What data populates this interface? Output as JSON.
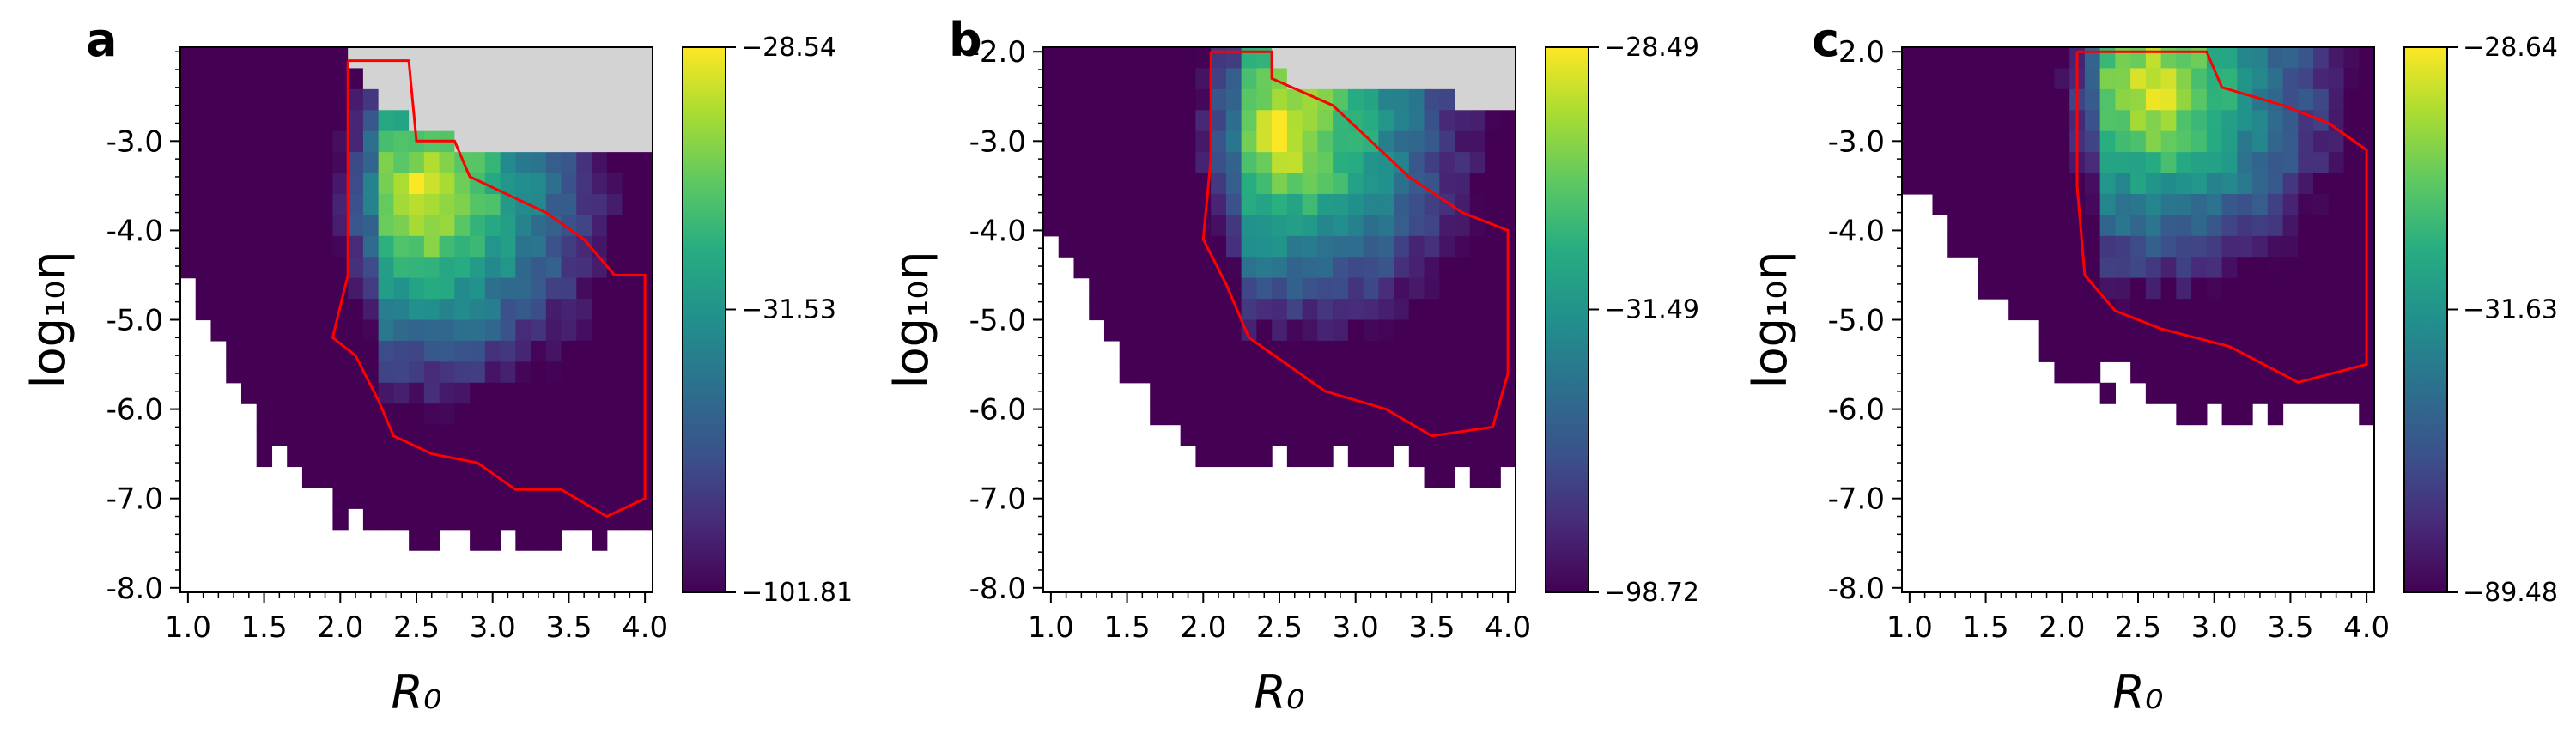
{
  "colors": {
    "colormap": "viridis",
    "mask_fill": "#d3d3d3",
    "contour": "#ff0000",
    "axis": "#000000",
    "background": "#ffffff"
  },
  "chart_data": [
    {
      "type": "heatmap",
      "panel_label": "a",
      "xlabel": "R₀",
      "ylabel": "log₁₀η",
      "xlim": [
        0.95,
        4.05
      ],
      "ylim": [
        -8.05,
        -1.95
      ],
      "xticks": [
        "1.0",
        "1.5",
        "2.0",
        "2.5",
        "3.0",
        "3.5",
        "4.0"
      ],
      "yticks": [
        "-3.0",
        "-4.0",
        "-5.0",
        "-6.0",
        "-7.0",
        "-8.0"
      ],
      "colorbar": {
        "min": -101.81,
        "mid": -31.53,
        "max": -28.54,
        "tick_labels": [
          "−28.54",
          "−31.53",
          "−101.81"
        ]
      },
      "notes": "Grid of log-likelihood values; white = no data (lower-left), grey = masked (upper-right). Peak (yellow) near R0≈2.5, log10η≈-3.5. Red contour encloses high-likelihood region.",
      "edge": [
        {
          "x": 1.0,
          "y": -4.6
        },
        {
          "x": 1.5,
          "y": -6.4
        },
        {
          "x": 2.0,
          "y": -7.2
        },
        {
          "x": 2.5,
          "y": -7.5
        },
        {
          "x": 3.0,
          "y": -7.5
        },
        {
          "x": 3.5,
          "y": -7.4
        },
        {
          "x": 4.0,
          "y": -7.5
        }
      ],
      "grey_region": [
        {
          "x": 2.0,
          "y": -2.0
        },
        {
          "x": 2.5,
          "y": -2.9
        },
        {
          "x": 3.2,
          "y": -3.2
        },
        {
          "x": 4.0,
          "y": -3.2
        }
      ],
      "peak": {
        "x": 2.55,
        "y": -3.6
      },
      "contour": [
        {
          "x": 2.05,
          "y": -2.1
        },
        {
          "x": 2.45,
          "y": -2.1
        },
        {
          "x": 2.5,
          "y": -3.0
        },
        {
          "x": 2.75,
          "y": -3.0
        },
        {
          "x": 2.85,
          "y": -3.4
        },
        {
          "x": 3.1,
          "y": -3.6
        },
        {
          "x": 3.35,
          "y": -3.8
        },
        {
          "x": 3.6,
          "y": -4.1
        },
        {
          "x": 3.8,
          "y": -4.5
        },
        {
          "x": 4.0,
          "y": -4.5
        },
        {
          "x": 4.0,
          "y": -7.0
        },
        {
          "x": 3.75,
          "y": -7.2
        },
        {
          "x": 3.45,
          "y": -6.9
        },
        {
          "x": 3.15,
          "y": -6.9
        },
        {
          "x": 2.9,
          "y": -6.6
        },
        {
          "x": 2.6,
          "y": -6.5
        },
        {
          "x": 2.35,
          "y": -6.3
        },
        {
          "x": 2.25,
          "y": -5.9
        },
        {
          "x": 2.1,
          "y": -5.4
        },
        {
          "x": 1.95,
          "y": -5.2
        },
        {
          "x": 2.05,
          "y": -4.5
        },
        {
          "x": 2.05,
          "y": -2.1
        }
      ]
    },
    {
      "type": "heatmap",
      "panel_label": "b",
      "xlabel": "R₀",
      "ylabel": "log₁₀η",
      "xlim": [
        0.95,
        4.05
      ],
      "ylim": [
        -8.05,
        -1.95
      ],
      "xticks": [
        "1.0",
        "1.5",
        "2.0",
        "2.5",
        "3.0",
        "3.5",
        "4.0"
      ],
      "yticks": [
        "-2.0",
        "-3.0",
        "-4.0",
        "-5.0",
        "-6.0",
        "-7.0",
        "-8.0"
      ],
      "colorbar": {
        "min": -98.72,
        "mid": -31.49,
        "max": -28.49,
        "tick_labels": [
          "−28.49",
          "−31.49",
          "−98.72"
        ]
      },
      "notes": "Grid of log-likelihood values; peak near R0≈2.5, log10η≈-2.8.",
      "edge": [
        {
          "x": 1.0,
          "y": -4.1
        },
        {
          "x": 1.5,
          "y": -5.7
        },
        {
          "x": 2.0,
          "y": -6.5
        },
        {
          "x": 2.5,
          "y": -6.6
        },
        {
          "x": 3.0,
          "y": -6.5
        },
        {
          "x": 3.5,
          "y": -6.7
        },
        {
          "x": 4.0,
          "y": -6.8
        }
      ],
      "grey_region": [
        {
          "x": 2.45,
          "y": -2.0
        },
        {
          "x": 2.5,
          "y": -2.3
        },
        {
          "x": 4.0,
          "y": -2.6
        }
      ],
      "peak": {
        "x": 2.55,
        "y": -2.9
      },
      "contour": [
        {
          "x": 2.05,
          "y": -2.0
        },
        {
          "x": 2.45,
          "y": -2.0
        },
        {
          "x": 2.45,
          "y": -2.3
        },
        {
          "x": 2.85,
          "y": -2.6
        },
        {
          "x": 3.1,
          "y": -3.0
        },
        {
          "x": 3.35,
          "y": -3.4
        },
        {
          "x": 3.7,
          "y": -3.8
        },
        {
          "x": 4.0,
          "y": -4.0
        },
        {
          "x": 4.0,
          "y": -5.6
        },
        {
          "x": 3.9,
          "y": -6.2
        },
        {
          "x": 3.5,
          "y": -6.3
        },
        {
          "x": 3.2,
          "y": -6.0
        },
        {
          "x": 2.8,
          "y": -5.8
        },
        {
          "x": 2.55,
          "y": -5.5
        },
        {
          "x": 2.3,
          "y": -5.2
        },
        {
          "x": 2.15,
          "y": -4.6
        },
        {
          "x": 2.0,
          "y": -4.1
        },
        {
          "x": 2.05,
          "y": -3.2
        },
        {
          "x": 2.05,
          "y": -2.0
        }
      ]
    },
    {
      "type": "heatmap",
      "panel_label": "c",
      "xlabel": "R₀",
      "ylabel": "log₁₀η",
      "xlim": [
        0.95,
        4.05
      ],
      "ylim": [
        -8.05,
        -1.95
      ],
      "xticks": [
        "1.0",
        "1.5",
        "2.0",
        "2.5",
        "3.0",
        "3.5",
        "4.0"
      ],
      "yticks": [
        "-2.0",
        "-3.0",
        "-4.0",
        "-5.0",
        "-6.0",
        "-7.0",
        "-8.0"
      ],
      "colorbar": {
        "min": -89.48,
        "mid": -31.63,
        "max": -28.64,
        "tick_labels": [
          "−28.64",
          "−31.63",
          "−89.48"
        ]
      },
      "notes": "Grid of log-likelihood values with no masked region; peak near R0≈2.6, log10η≈-2.3.",
      "edge": [
        {
          "x": 1.0,
          "y": -3.5
        },
        {
          "x": 1.5,
          "y": -4.6
        },
        {
          "x": 2.0,
          "y": -5.5
        },
        {
          "x": 2.5,
          "y": -5.8
        },
        {
          "x": 3.0,
          "y": -6.1
        },
        {
          "x": 3.5,
          "y": -6.0
        },
        {
          "x": 4.0,
          "y": -5.9
        }
      ],
      "grey_region": [],
      "peak": {
        "x": 2.6,
        "y": -2.4
      },
      "contour": [
        {
          "x": 2.1,
          "y": -2.0
        },
        {
          "x": 2.95,
          "y": -2.0
        },
        {
          "x": 3.05,
          "y": -2.4
        },
        {
          "x": 3.45,
          "y": -2.6
        },
        {
          "x": 3.75,
          "y": -2.8
        },
        {
          "x": 4.0,
          "y": -3.1
        },
        {
          "x": 4.0,
          "y": -5.5
        },
        {
          "x": 3.55,
          "y": -5.7
        },
        {
          "x": 3.1,
          "y": -5.3
        },
        {
          "x": 2.65,
          "y": -5.1
        },
        {
          "x": 2.35,
          "y": -4.9
        },
        {
          "x": 2.15,
          "y": -4.5
        },
        {
          "x": 2.1,
          "y": -3.5
        },
        {
          "x": 2.1,
          "y": -2.0
        }
      ]
    }
  ]
}
